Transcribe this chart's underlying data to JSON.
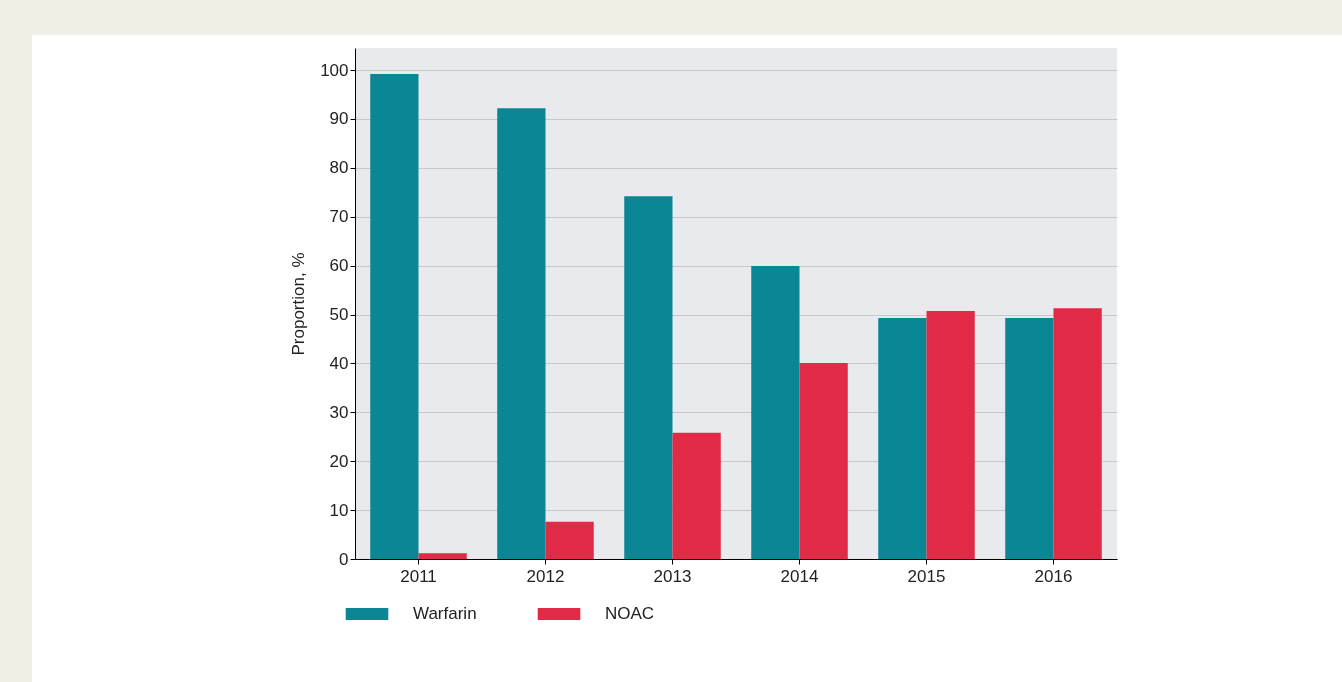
{
  "chart_data": {
    "type": "bar",
    "ylabel": "Proportion, %",
    "categories": [
      "2011",
      "2012",
      "2013",
      "2014",
      "2015",
      "2016"
    ],
    "series": [
      {
        "name": "Warfarin",
        "color": "#0a8694",
        "values": [
          99.2,
          92.2,
          74.2,
          59.9,
          49.3,
          49.3
        ]
      },
      {
        "name": "NOAC",
        "color": "#e02a46",
        "values": [
          1.2,
          7.6,
          25.8,
          40.1,
          50.7,
          51.3
        ]
      }
    ],
    "ylim": [
      0,
      104.5
    ],
    "yticks": [
      0,
      10,
      20,
      30,
      40,
      50,
      60,
      70,
      80,
      90,
      100
    ],
    "grid": "y",
    "legend": "bottom"
  }
}
